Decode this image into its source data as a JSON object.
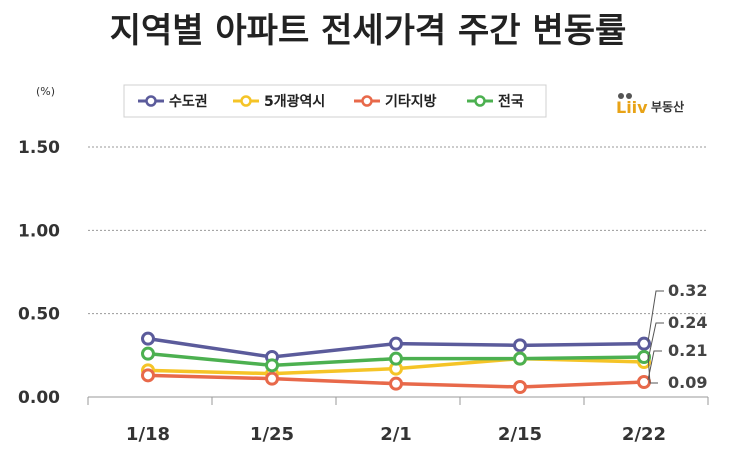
{
  "chart_data": {
    "type": "line",
    "title": "지역별 아파트 전세가격 주간 변동률",
    "unit_label": "(%)",
    "categories": [
      "1/18",
      "1/25",
      "2/1",
      "2/15",
      "2/22"
    ],
    "ylim": [
      0,
      1.5
    ],
    "yticks": [
      "0.00",
      "0.50",
      "1.00",
      "1.50"
    ],
    "ytick_values": [
      0,
      0.5,
      1.0,
      1.5
    ],
    "grid": true,
    "legend_position": "top",
    "series": [
      {
        "name": "수도권",
        "color": "#5b5b9b",
        "values": [
          0.35,
          0.24,
          0.32,
          0.31,
          0.32
        ]
      },
      {
        "name": "5개광역시",
        "color": "#f5c427",
        "values": [
          0.16,
          0.14,
          0.17,
          0.23,
          0.21
        ]
      },
      {
        "name": "기타지방",
        "color": "#e8694a",
        "values": [
          0.13,
          0.11,
          0.08,
          0.06,
          0.09
        ]
      },
      {
        "name": "전국",
        "color": "#4cb050",
        "values": [
          0.26,
          0.19,
          0.23,
          0.23,
          0.24
        ]
      }
    ],
    "end_labels": [
      "0.32",
      "0.24",
      "0.21",
      "0.09"
    ]
  },
  "brand": {
    "logo_text": "Liiv",
    "sub_text": "부동산"
  }
}
